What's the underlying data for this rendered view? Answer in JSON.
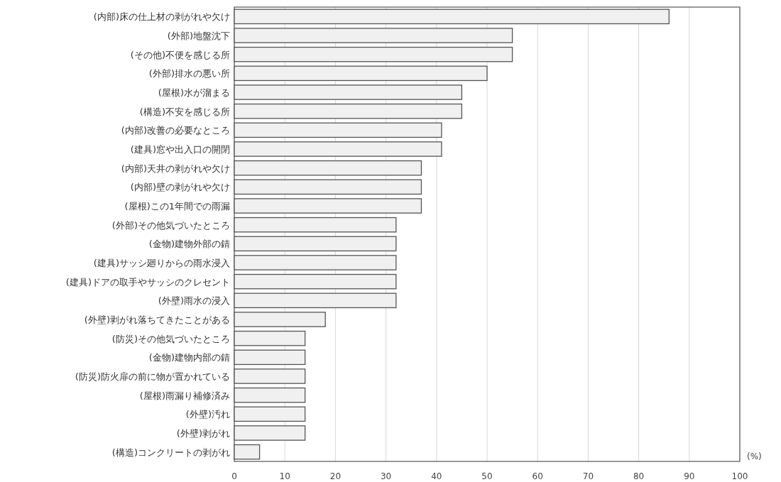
{
  "chart_data": {
    "type": "bar",
    "orientation": "horizontal",
    "categories": [
      "(内部)床の仕上材の剥がれや欠け",
      "(外部)地盤沈下",
      "(その他)不便を感じる所",
      "(外部)排水の悪い所",
      "(屋根)水が溜まる",
      "(構造)不安を感じる所",
      "(内部)改善の必要なところ",
      "(建具)窓や出入口の開閉",
      "(内部)天井の剥がれや欠け",
      "(内部)壁の剥がれや欠け",
      "(屋根)この1年間での雨漏",
      "(外部)その他気づいたところ",
      "(金物)建物外部の錆",
      "(建具)サッシ廻りからの雨水浸入",
      "(建具)ドアの取手やサッシのクレセント",
      "(外壁)雨水の浸入",
      "(外壁)剥がれ落ちてきたことがある",
      "(防災)その他気づいたところ",
      "(金物)建物内部の錆",
      "(防災)防火扉の前に物が置かれている",
      "(屋根)雨漏り補修済み",
      "(外壁)汚れ",
      "(外壁)剥がれ",
      "(構造)コンクリートの剥がれ"
    ],
    "values": [
      86,
      55,
      55,
      50,
      45,
      45,
      41,
      41,
      37,
      37,
      37,
      32,
      32,
      32,
      32,
      32,
      18,
      14,
      14,
      14,
      14,
      14,
      14,
      5
    ],
    "color": "#f0f0f0",
    "xlim": [
      0,
      100
    ],
    "xticks": [
      0,
      10,
      20,
      30,
      40,
      50,
      60,
      70,
      80,
      90,
      100
    ],
    "xlabel": "(%)",
    "grid": "x"
  }
}
